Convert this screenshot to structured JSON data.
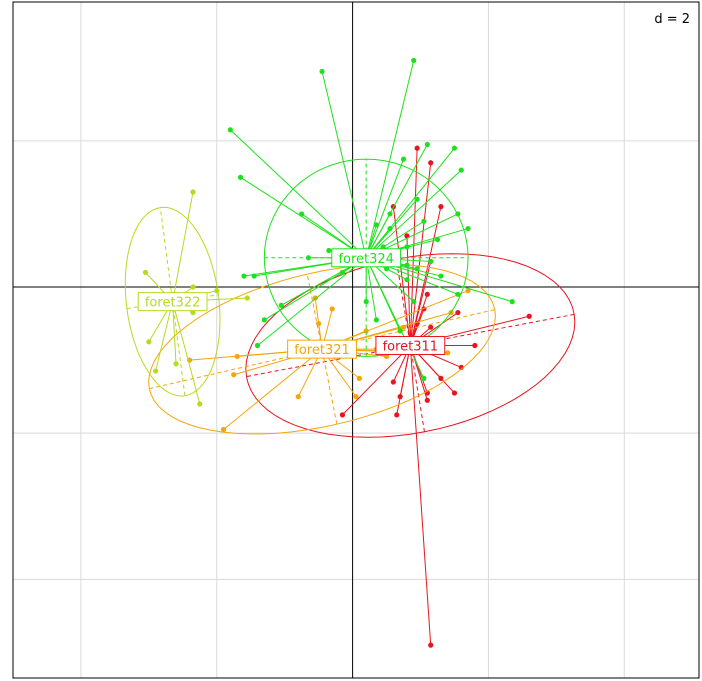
{
  "chart_data": {
    "type": "scatter",
    "title": "",
    "xlabel": "",
    "ylabel": "",
    "scale_label": "d = 2",
    "grid": true,
    "xlim": [
      -5.0,
      5.1
    ],
    "ylim": [
      -5.35,
      3.9
    ],
    "groups": [
      {
        "name": "foret311",
        "color": "#e8141e",
        "center": [
          0.85,
          -0.8
        ],
        "ellipse": {
          "a": 1.2,
          "b": 2.45,
          "angle_deg": 100
        },
        "points": [
          [
            1.15,
            1.7
          ],
          [
            0.95,
            1.9
          ],
          [
            1.3,
            1.1
          ],
          [
            0.8,
            0.7
          ],
          [
            0.6,
            1.1
          ],
          [
            2.6,
            -0.4
          ],
          [
            1.8,
            -0.8
          ],
          [
            1.6,
            -1.1
          ],
          [
            1.5,
            -1.45
          ],
          [
            1.1,
            -1.55
          ],
          [
            0.7,
            -1.5
          ],
          [
            0.6,
            -1.3
          ],
          [
            0.65,
            -1.75
          ],
          [
            -0.15,
            -1.75
          ],
          [
            0.95,
            -0.5
          ],
          [
            1.1,
            -0.1
          ],
          [
            1.55,
            -0.35
          ],
          [
            1.15,
            -0.55
          ],
          [
            1.3,
            -1.25
          ],
          [
            1.1,
            -1.45
          ],
          [
            1.15,
            0.35
          ],
          [
            1.05,
            -0.3
          ],
          [
            1.15,
            -4.9
          ]
        ]
      },
      {
        "name": "foret321",
        "color": "#f5a50a",
        "center": [
          -0.45,
          -0.85
        ],
        "ellipse": {
          "a": 2.6,
          "b": 1.05,
          "angle_deg": 12
        },
        "points": [
          [
            -1.7,
            -0.95
          ],
          [
            -2.4,
            -1.0
          ],
          [
            -1.75,
            -1.2
          ],
          [
            -0.8,
            -1.5
          ],
          [
            -1.9,
            -1.95
          ],
          [
            -0.5,
            -0.5
          ],
          [
            0.1,
            -1.25
          ],
          [
            0.35,
            -0.85
          ],
          [
            1.4,
            -0.9
          ],
          [
            1.45,
            -0.35
          ],
          [
            1.7,
            -0.05
          ],
          [
            0.75,
            -0.55
          ],
          [
            0.2,
            -0.6
          ],
          [
            -0.55,
            -0.15
          ],
          [
            0.05,
            -1.5
          ],
          [
            0.9,
            -0.9
          ],
          [
            0.5,
            -0.95
          ],
          [
            -0.3,
            -0.3
          ]
        ]
      },
      {
        "name": "foret322",
        "color": "#b4dc1e",
        "center": [
          -2.65,
          -0.2
        ],
        "ellipse": {
          "a": 0.68,
          "b": 1.3,
          "angle_deg": 8
        },
        "points": [
          [
            -2.35,
            1.3
          ],
          [
            -3.05,
            0.2
          ],
          [
            -2.35,
            0.0
          ],
          [
            -2.25,
            -1.6
          ],
          [
            -2.65,
            -0.1
          ],
          [
            -2.6,
            -1.05
          ],
          [
            -2.9,
            -1.15
          ],
          [
            -1.55,
            -0.15
          ],
          [
            -2.35,
            -0.35
          ],
          [
            -3.0,
            -0.75
          ],
          [
            -2.0,
            -0.05
          ]
        ]
      },
      {
        "name": "foret324",
        "color": "#1ee11e",
        "center": [
          0.2,
          0.4
        ],
        "ellipse": {
          "a": 1.5,
          "b": 1.35,
          "angle_deg": 0
        },
        "points": [
          [
            -0.45,
            2.95
          ],
          [
            0.9,
            3.1
          ],
          [
            -1.8,
            2.15
          ],
          [
            -1.65,
            1.5
          ],
          [
            -0.75,
            1.0
          ],
          [
            -1.6,
            0.15
          ],
          [
            -1.45,
            0.15
          ],
          [
            -0.65,
            0.4
          ],
          [
            -0.15,
            0.2
          ],
          [
            -1.3,
            -0.45
          ],
          [
            -1.4,
            -0.8
          ],
          [
            -1.05,
            -0.25
          ],
          [
            0.45,
            0.55
          ],
          [
            0.8,
            0.3
          ],
          [
            0.55,
            1.0
          ],
          [
            0.75,
            1.75
          ],
          [
            0.95,
            1.2
          ],
          [
            1.1,
            1.95
          ],
          [
            1.5,
            1.9
          ],
          [
            1.6,
            1.6
          ],
          [
            1.05,
            0.9
          ],
          [
            1.25,
            0.65
          ],
          [
            0.8,
            0.55
          ],
          [
            0.2,
            -0.2
          ],
          [
            0.35,
            -0.45
          ],
          [
            0.9,
            -0.2
          ],
          [
            1.05,
            -1.25
          ],
          [
            2.35,
            -0.2
          ],
          [
            0.7,
            -0.6
          ],
          [
            0.8,
            0.1
          ],
          [
            0.5,
            0.25
          ],
          [
            1.7,
            0.8
          ],
          [
            1.55,
            1.0
          ],
          [
            0.55,
            0.8
          ],
          [
            0.95,
            0.25
          ],
          [
            0.35,
            0.85
          ],
          [
            -0.35,
            0.5
          ],
          [
            1.55,
            -0.1
          ],
          [
            1.3,
            0.15
          ],
          [
            1.15,
            0.35
          ]
        ]
      }
    ]
  }
}
